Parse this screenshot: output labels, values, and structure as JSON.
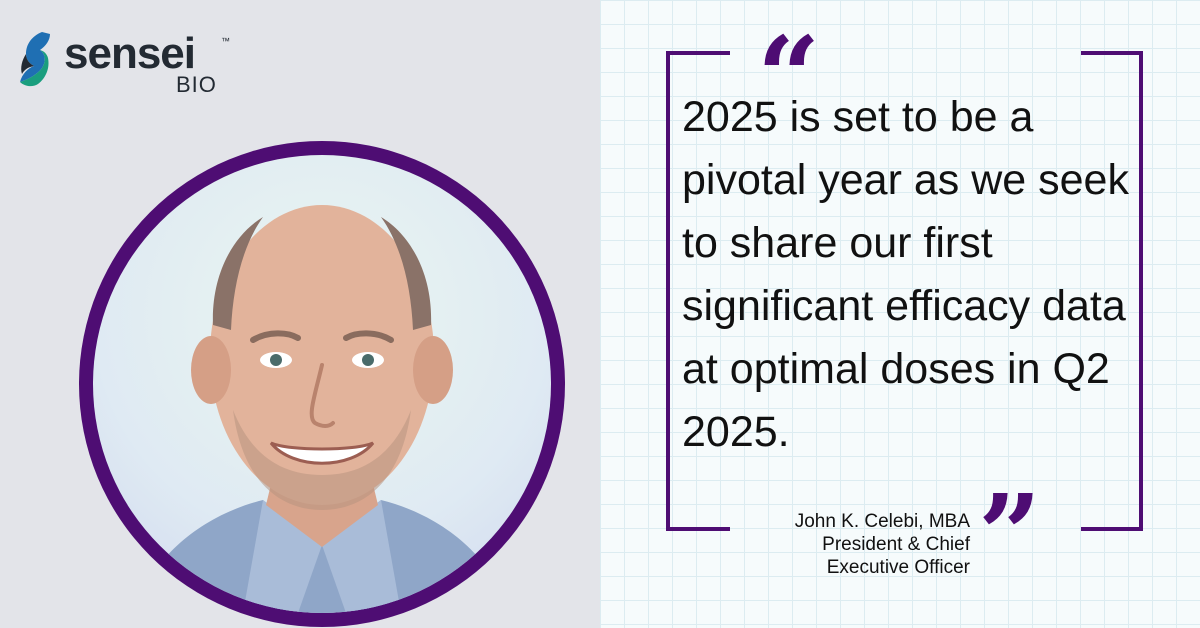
{
  "brand": {
    "name": "sensei",
    "suffix": "BIO",
    "trademark": "™",
    "colors": {
      "purple": "#4e0d73",
      "teal": "#1a9e7e",
      "blue": "#1f6fb3",
      "dark": "#232a33"
    }
  },
  "portrait": {
    "alt": "Portrait"
  },
  "quote": {
    "open_mark": "“",
    "close_mark": "”",
    "text": "2025 is set to be a pivotal year as we seek to share our first significant efficacy data at optimal doses in Q2 2025."
  },
  "attribution": {
    "name": "John K. Celebi, MBA",
    "title_line1": "President & Chief",
    "title_line2": "Executive Officer"
  },
  "icons": [
    "sensei-logo-icon"
  ]
}
